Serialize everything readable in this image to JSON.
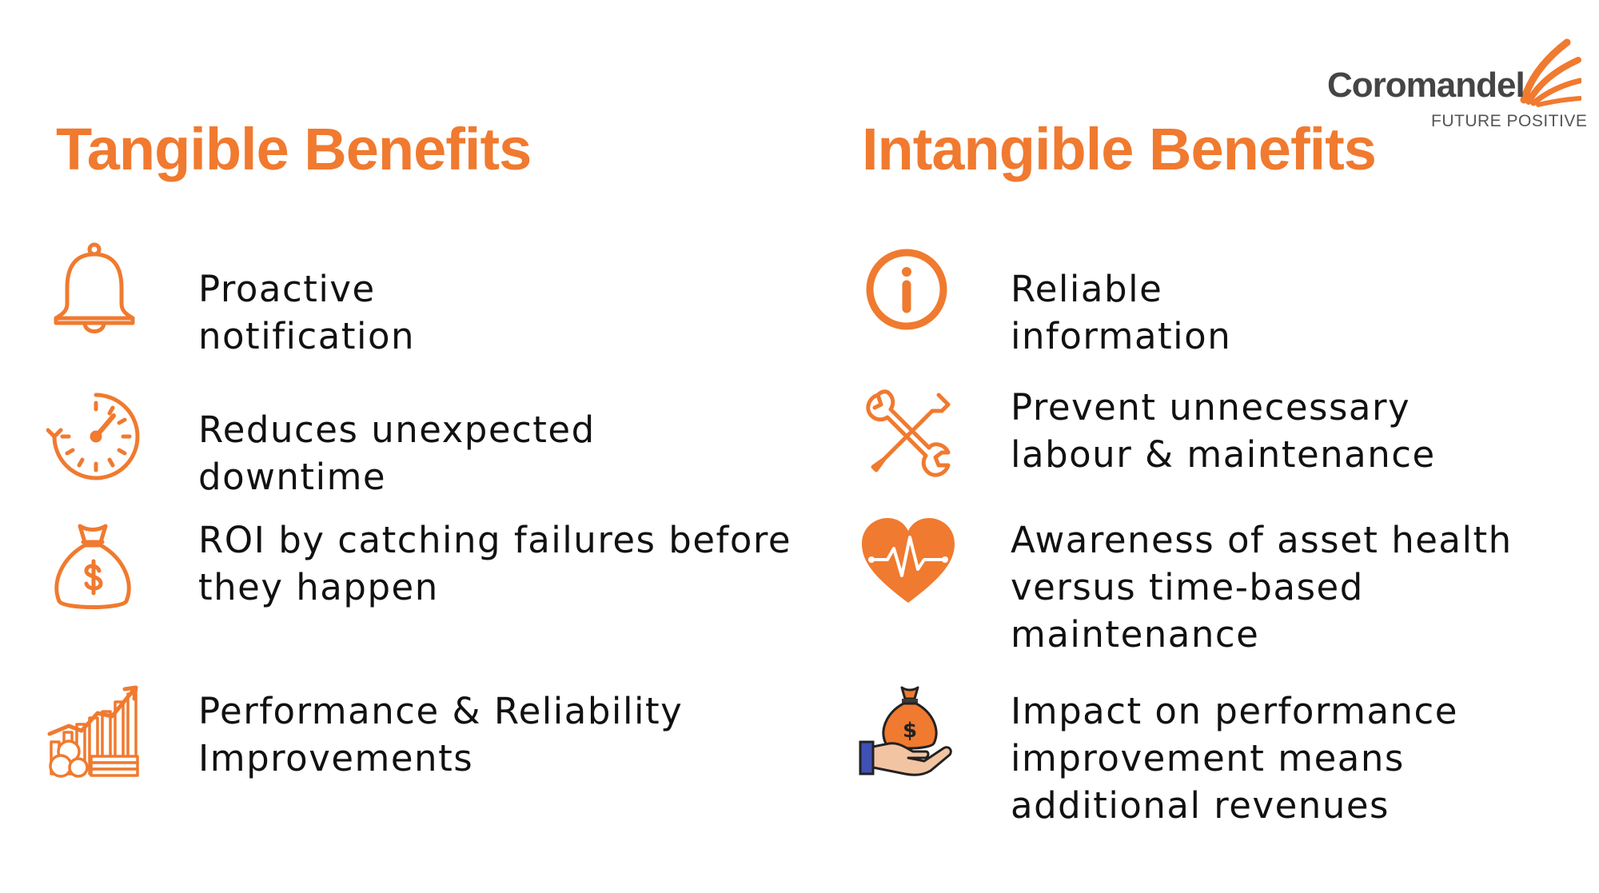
{
  "logo": {
    "name": "Coromandel",
    "tagline": "FUTURE POSITIVE",
    "brand_color": "#f07a2f"
  },
  "tangible": {
    "title": "Tangible Benefits",
    "items": [
      {
        "icon": "bell-icon",
        "lines": [
          "Proactive",
          "notification"
        ]
      },
      {
        "icon": "stopwatch-icon",
        "lines": [
          "Reduces unexpected",
          "downtime"
        ]
      },
      {
        "icon": "money-bag-icon",
        "lines": [
          "ROI by catching failures before",
          "they happen"
        ]
      },
      {
        "icon": "growth-chart-coins-icon",
        "lines": [
          "Performance & Reliability",
          "Improvements"
        ]
      }
    ]
  },
  "intangible": {
    "title": "Intangible Benefits",
    "items": [
      {
        "icon": "info-icon",
        "lines": [
          "Reliable",
          "information"
        ]
      },
      {
        "icon": "wrench-screwdriver-icon",
        "lines": [
          "Prevent unnecessary",
          "labour & maintenance"
        ]
      },
      {
        "icon": "heart-pulse-icon",
        "lines": [
          "Awareness of asset health",
          "versus time-based",
          "maintenance"
        ]
      },
      {
        "icon": "hand-money-bag-icon",
        "lines": [
          "Impact on performance",
          "improvement means",
          "additional revenues"
        ]
      }
    ]
  },
  "colors": {
    "accent": "#f07a2f",
    "text": "#111111",
    "logo_text": "#454545"
  }
}
